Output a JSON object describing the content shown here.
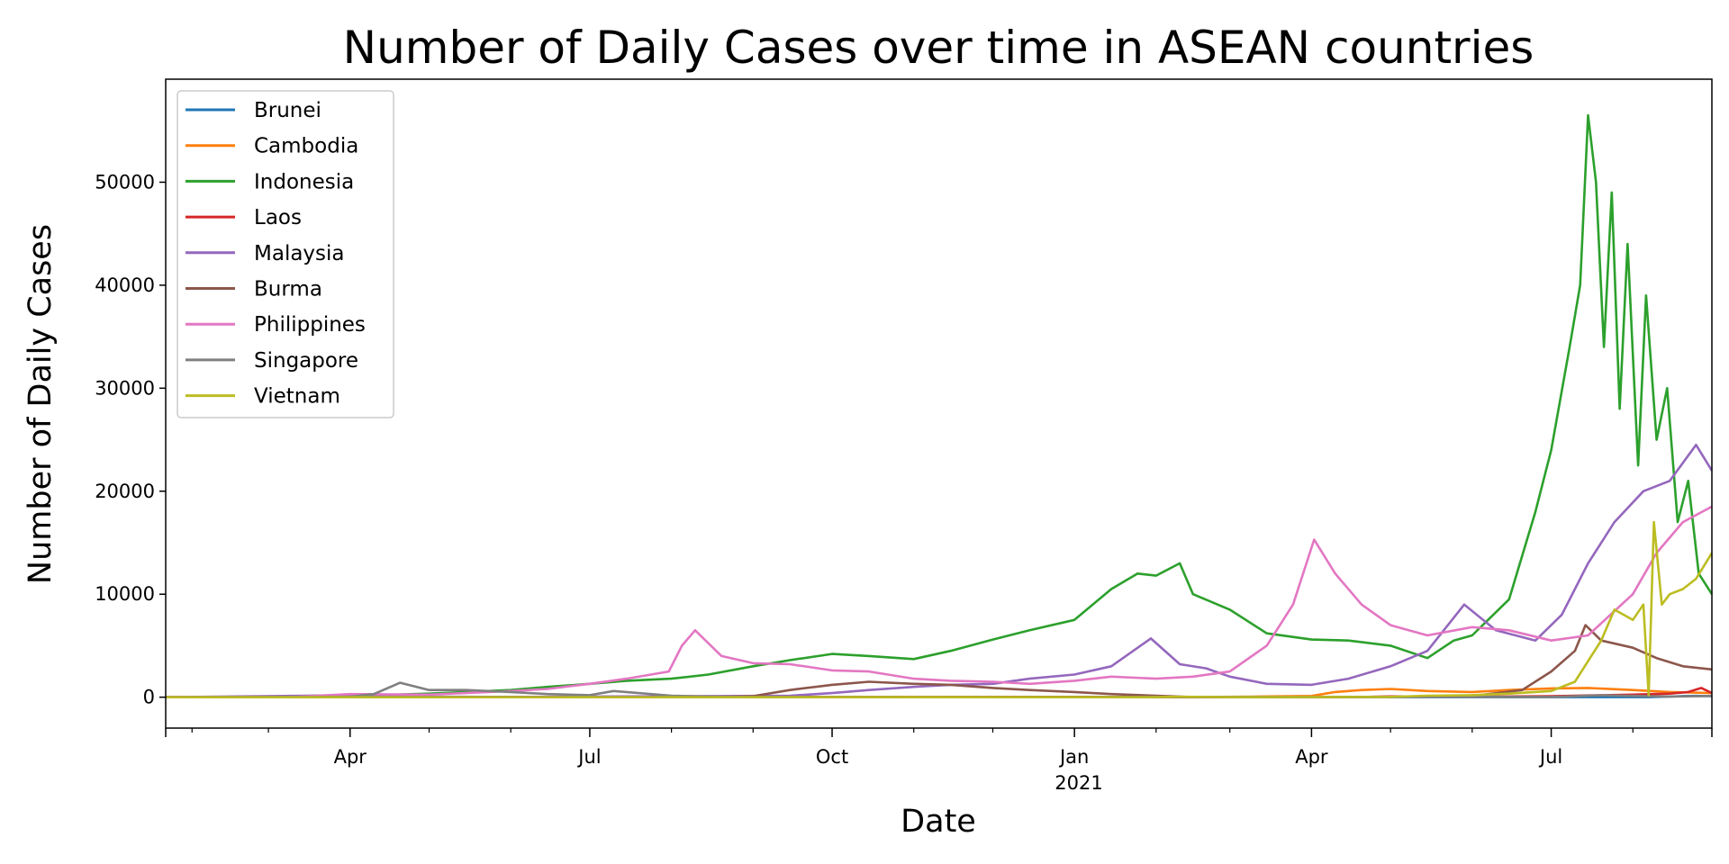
{
  "chart_data": {
    "type": "line",
    "title": "Number of Daily Cases over time in ASEAN countries",
    "xlabel": "Date",
    "ylabel": "Number of Daily Cases",
    "xlim": [
      "2020-01-22",
      "2021-08-31"
    ],
    "ylim": [
      -3000,
      60000
    ],
    "y_ticks": [
      0,
      10000,
      20000,
      30000,
      40000,
      50000
    ],
    "x_ticks": [
      {
        "date": "2020-04-01",
        "label": "Apr"
      },
      {
        "date": "2020-07-01",
        "label": "Jul"
      },
      {
        "date": "2020-10-01",
        "label": "Oct"
      },
      {
        "date": "2021-01-01",
        "label": "Jan"
      },
      {
        "date": "2021-04-01",
        "label": "Apr"
      },
      {
        "date": "2021-07-01",
        "label": "Jul"
      }
    ],
    "x_year_label": "2021",
    "grid": false,
    "legend_position": "top-left",
    "series": [
      {
        "name": "Brunei",
        "color": "#1f77b4",
        "points": [
          [
            "2020-01-22",
            0
          ],
          [
            "2020-03-15",
            5
          ],
          [
            "2020-04-15",
            2
          ],
          [
            "2020-06-01",
            0
          ],
          [
            "2021-01-01",
            0
          ],
          [
            "2021-07-01",
            2
          ],
          [
            "2021-08-07",
            5
          ],
          [
            "2021-08-15",
            60
          ],
          [
            "2021-08-20",
            110
          ],
          [
            "2021-08-25",
            130
          ],
          [
            "2021-08-31",
            100
          ]
        ]
      },
      {
        "name": "Cambodia",
        "color": "#ff7f0e",
        "points": [
          [
            "2020-01-22",
            0
          ],
          [
            "2020-03-20",
            8
          ],
          [
            "2020-11-28",
            10
          ],
          [
            "2021-01-01",
            3
          ],
          [
            "2021-02-20",
            20
          ],
          [
            "2021-03-10",
            60
          ],
          [
            "2021-04-01",
            120
          ],
          [
            "2021-04-10",
            500
          ],
          [
            "2021-04-20",
            700
          ],
          [
            "2021-05-01",
            800
          ],
          [
            "2021-05-15",
            600
          ],
          [
            "2021-06-01",
            500
          ],
          [
            "2021-06-15",
            700
          ],
          [
            "2021-07-01",
            850
          ],
          [
            "2021-07-15",
            900
          ],
          [
            "2021-08-01",
            700
          ],
          [
            "2021-08-15",
            500
          ],
          [
            "2021-08-31",
            400
          ]
        ]
      },
      {
        "name": "Indonesia",
        "color": "#2ca02c",
        "points": [
          [
            "2020-01-22",
            0
          ],
          [
            "2020-03-01",
            0
          ],
          [
            "2020-04-01",
            120
          ],
          [
            "2020-05-01",
            350
          ],
          [
            "2020-06-01",
            700
          ],
          [
            "2020-06-15",
            1000
          ],
          [
            "2020-07-01",
            1300
          ],
          [
            "2020-07-15",
            1600
          ],
          [
            "2020-08-01",
            1800
          ],
          [
            "2020-08-15",
            2200
          ],
          [
            "2020-09-01",
            3000
          ],
          [
            "2020-09-15",
            3600
          ],
          [
            "2020-10-01",
            4200
          ],
          [
            "2020-10-15",
            4000
          ],
          [
            "2020-11-01",
            3700
          ],
          [
            "2020-11-15",
            4500
          ],
          [
            "2020-12-01",
            5600
          ],
          [
            "2020-12-15",
            6500
          ],
          [
            "2021-01-01",
            7500
          ],
          [
            "2021-01-15",
            10500
          ],
          [
            "2021-01-25",
            12000
          ],
          [
            "2021-02-01",
            11800
          ],
          [
            "2021-02-10",
            13000
          ],
          [
            "2021-02-15",
            10000
          ],
          [
            "2021-03-01",
            8500
          ],
          [
            "2021-03-15",
            6200
          ],
          [
            "2021-04-01",
            5600
          ],
          [
            "2021-04-15",
            5500
          ],
          [
            "2021-05-01",
            5000
          ],
          [
            "2021-05-15",
            3800
          ],
          [
            "2021-05-25",
            5500
          ],
          [
            "2021-06-01",
            6000
          ],
          [
            "2021-06-15",
            9500
          ],
          [
            "2021-06-25",
            18000
          ],
          [
            "2021-07-01",
            24000
          ],
          [
            "2021-07-08",
            34000
          ],
          [
            "2021-07-12",
            40000
          ],
          [
            "2021-07-15",
            56500
          ],
          [
            "2021-07-18",
            50000
          ],
          [
            "2021-07-21",
            34000
          ],
          [
            "2021-07-24",
            49000
          ],
          [
            "2021-07-27",
            28000
          ],
          [
            "2021-07-30",
            44000
          ],
          [
            "2021-08-03",
            22500
          ],
          [
            "2021-08-06",
            39000
          ],
          [
            "2021-08-10",
            25000
          ],
          [
            "2021-08-14",
            30000
          ],
          [
            "2021-08-18",
            17000
          ],
          [
            "2021-08-22",
            21000
          ],
          [
            "2021-08-26",
            12000
          ],
          [
            "2021-08-31",
            10000
          ]
        ]
      },
      {
        "name": "Laos",
        "color": "#d62728",
        "points": [
          [
            "2020-01-22",
            0
          ],
          [
            "2021-04-20",
            20
          ],
          [
            "2021-05-01",
            80
          ],
          [
            "2021-06-01",
            40
          ],
          [
            "2021-07-01",
            90
          ],
          [
            "2021-08-01",
            250
          ],
          [
            "2021-08-15",
            350
          ],
          [
            "2021-08-22",
            500
          ],
          [
            "2021-08-27",
            900
          ],
          [
            "2021-08-31",
            400
          ]
        ]
      },
      {
        "name": "Malaysia",
        "color": "#9467bd",
        "points": [
          [
            "2020-01-22",
            0
          ],
          [
            "2020-03-15",
            150
          ],
          [
            "2020-04-01",
            200
          ],
          [
            "2020-05-01",
            50
          ],
          [
            "2020-06-01",
            20
          ],
          [
            "2020-09-15",
            150
          ],
          [
            "2020-10-01",
            400
          ],
          [
            "2020-10-15",
            700
          ],
          [
            "2020-11-01",
            1000
          ],
          [
            "2020-11-15",
            1200
          ],
          [
            "2020-12-01",
            1300
          ],
          [
            "2020-12-15",
            1800
          ],
          [
            "2021-01-01",
            2200
          ],
          [
            "2021-01-15",
            3000
          ],
          [
            "2021-01-30",
            5700
          ],
          [
            "2021-02-10",
            3200
          ],
          [
            "2021-02-20",
            2800
          ],
          [
            "2021-03-01",
            2000
          ],
          [
            "2021-03-15",
            1300
          ],
          [
            "2021-04-01",
            1200
          ],
          [
            "2021-04-15",
            1800
          ],
          [
            "2021-05-01",
            3000
          ],
          [
            "2021-05-15",
            4500
          ],
          [
            "2021-05-29",
            9000
          ],
          [
            "2021-06-10",
            6500
          ],
          [
            "2021-06-25",
            5500
          ],
          [
            "2021-07-05",
            8000
          ],
          [
            "2021-07-15",
            13000
          ],
          [
            "2021-07-25",
            17000
          ],
          [
            "2021-08-05",
            20000
          ],
          [
            "2021-08-15",
            21000
          ],
          [
            "2021-08-25",
            24500
          ],
          [
            "2021-08-31",
            22000
          ]
        ]
      },
      {
        "name": "Burma",
        "color": "#8c564b",
        "points": [
          [
            "2020-01-22",
            0
          ],
          [
            "2020-08-15",
            0
          ],
          [
            "2020-09-01",
            100
          ],
          [
            "2020-09-15",
            700
          ],
          [
            "2020-10-01",
            1200
          ],
          [
            "2020-10-15",
            1500
          ],
          [
            "2020-11-01",
            1300
          ],
          [
            "2020-11-15",
            1200
          ],
          [
            "2020-12-01",
            900
          ],
          [
            "2020-12-15",
            700
          ],
          [
            "2021-01-01",
            500
          ],
          [
            "2021-01-15",
            300
          ],
          [
            "2021-02-01",
            150
          ],
          [
            "2021-02-15",
            10
          ],
          [
            "2021-04-01",
            30
          ],
          [
            "2021-05-01",
            30
          ],
          [
            "2021-06-01",
            120
          ],
          [
            "2021-06-20",
            700
          ],
          [
            "2021-07-01",
            2500
          ],
          [
            "2021-07-10",
            4500
          ],
          [
            "2021-07-14",
            7000
          ],
          [
            "2021-07-20",
            5500
          ],
          [
            "2021-08-01",
            4800
          ],
          [
            "2021-08-10",
            3800
          ],
          [
            "2021-08-20",
            3000
          ],
          [
            "2021-08-31",
            2700
          ]
        ]
      },
      {
        "name": "Philippines",
        "color": "#e377c2",
        "points": [
          [
            "2020-01-22",
            0
          ],
          [
            "2020-03-10",
            10
          ],
          [
            "2020-04-01",
            300
          ],
          [
            "2020-05-01",
            250
          ],
          [
            "2020-06-01",
            600
          ],
          [
            "2020-06-15",
            800
          ],
          [
            "2020-07-01",
            1300
          ],
          [
            "2020-07-15",
            1800
          ],
          [
            "2020-07-31",
            2500
          ],
          [
            "2020-08-05",
            5000
          ],
          [
            "2020-08-10",
            6500
          ],
          [
            "2020-08-20",
            4000
          ],
          [
            "2020-09-01",
            3300
          ],
          [
            "2020-09-15",
            3200
          ],
          [
            "2020-10-01",
            2600
          ],
          [
            "2020-10-15",
            2500
          ],
          [
            "2020-11-01",
            1800
          ],
          [
            "2020-11-15",
            1600
          ],
          [
            "2020-12-01",
            1500
          ],
          [
            "2020-12-15",
            1300
          ],
          [
            "2021-01-01",
            1600
          ],
          [
            "2021-01-15",
            2000
          ],
          [
            "2021-02-01",
            1800
          ],
          [
            "2021-02-15",
            2000
          ],
          [
            "2021-03-01",
            2500
          ],
          [
            "2021-03-15",
            5000
          ],
          [
            "2021-03-25",
            9000
          ],
          [
            "2021-04-02",
            15300
          ],
          [
            "2021-04-10",
            12000
          ],
          [
            "2021-04-20",
            9000
          ],
          [
            "2021-05-01",
            7000
          ],
          [
            "2021-05-15",
            6000
          ],
          [
            "2021-06-01",
            6800
          ],
          [
            "2021-06-15",
            6500
          ],
          [
            "2021-07-01",
            5500
          ],
          [
            "2021-07-15",
            6000
          ],
          [
            "2021-08-01",
            10000
          ],
          [
            "2021-08-10",
            14000
          ],
          [
            "2021-08-20",
            17000
          ],
          [
            "2021-08-31",
            18500
          ]
        ]
      },
      {
        "name": "Singapore",
        "color": "#7f7f7f",
        "points": [
          [
            "2020-01-22",
            0
          ],
          [
            "2020-03-15",
            15
          ],
          [
            "2020-04-01",
            50
          ],
          [
            "2020-04-10",
            300
          ],
          [
            "2020-04-20",
            1400
          ],
          [
            "2020-05-01",
            700
          ],
          [
            "2020-05-15",
            700
          ],
          [
            "2020-06-01",
            500
          ],
          [
            "2020-06-15",
            300
          ],
          [
            "2020-07-01",
            200
          ],
          [
            "2020-07-10",
            600
          ],
          [
            "2020-08-01",
            150
          ],
          [
            "2020-08-15",
            50
          ],
          [
            "2020-09-01",
            20
          ],
          [
            "2020-11-01",
            5
          ],
          [
            "2021-04-01",
            20
          ],
          [
            "2021-05-15",
            30
          ],
          [
            "2021-07-01",
            20
          ],
          [
            "2021-07-20",
            180
          ],
          [
            "2021-08-01",
            130
          ],
          [
            "2021-08-15",
            70
          ],
          [
            "2021-08-31",
            120
          ]
        ]
      },
      {
        "name": "Vietnam",
        "color": "#bcbd22",
        "points": [
          [
            "2020-01-22",
            0
          ],
          [
            "2021-01-28",
            0
          ],
          [
            "2021-02-10",
            40
          ],
          [
            "2021-03-01",
            10
          ],
          [
            "2021-04-30",
            20
          ],
          [
            "2021-05-15",
            150
          ],
          [
            "2021-06-01",
            200
          ],
          [
            "2021-06-15",
            350
          ],
          [
            "2021-07-01",
            600
          ],
          [
            "2021-07-10",
            1500
          ],
          [
            "2021-07-15",
            3500
          ],
          [
            "2021-07-20",
            5500
          ],
          [
            "2021-07-25",
            8500
          ],
          [
            "2021-08-01",
            7500
          ],
          [
            "2021-08-05",
            9000
          ],
          [
            "2021-08-07",
            200
          ],
          [
            "2021-08-09",
            17000
          ],
          [
            "2021-08-12",
            9000
          ],
          [
            "2021-08-15",
            10000
          ],
          [
            "2021-08-20",
            10500
          ],
          [
            "2021-08-25",
            11500
          ],
          [
            "2021-08-31",
            14000
          ]
        ]
      }
    ]
  }
}
